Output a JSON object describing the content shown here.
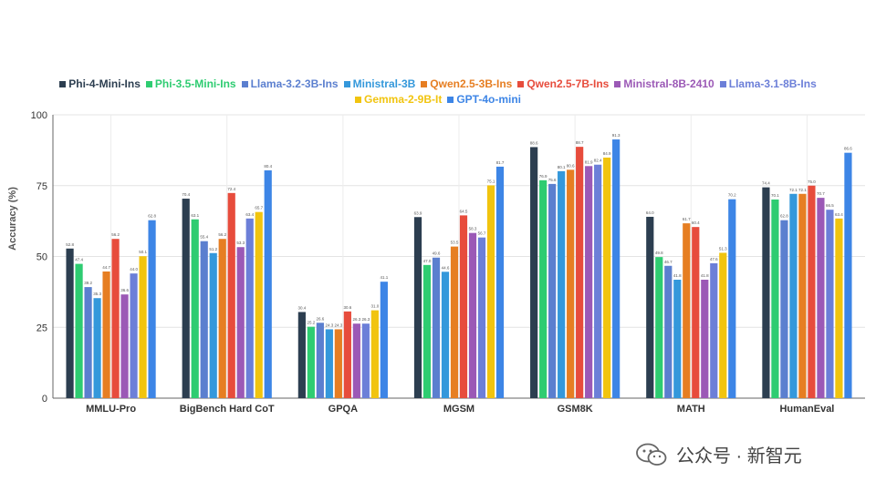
{
  "chart_data": {
    "type": "bar",
    "title": "",
    "xlabel": "",
    "ylabel": "Accuracy (%)",
    "ylim": [
      0,
      100
    ],
    "yticks": [
      0,
      25,
      50,
      75,
      100
    ],
    "grid": true,
    "legend_position": "top",
    "categories": [
      "MMLU-Pro",
      "BigBench Hard CoT",
      "GPQA",
      "MGSM",
      "GSM8K",
      "MATH",
      "HumanEval"
    ],
    "series": [
      {
        "name": "Phi-4-Mini-Ins",
        "color": "#2c3e50",
        "values": [
          52.8,
          70.4,
          30.4,
          63.9,
          88.6,
          64.0,
          74.4
        ]
      },
      {
        "name": "Phi-3.5-Mini-Ins",
        "color": "#2ecc71",
        "values": [
          47.4,
          63.1,
          25.2,
          47.0,
          76.9,
          49.8,
          70.1
        ]
      },
      {
        "name": "Llama-3.2-3B-Ins",
        "color": "#5b7fcf",
        "values": [
          39.2,
          55.4,
          26.6,
          49.6,
          75.6,
          46.7,
          62.8
        ]
      },
      {
        "name": "Ministral-3B",
        "color": "#3498db",
        "values": [
          35.3,
          51.2,
          24.3,
          44.6,
          80.1,
          41.8,
          72.1
        ]
      },
      {
        "name": "Qwen2.5-3B-Ins",
        "color": "#e67e22",
        "values": [
          44.7,
          56.2,
          24.3,
          53.5,
          80.6,
          61.7,
          72.1
        ]
      },
      {
        "name": "Qwen2.5-7B-Ins",
        "color": "#e74c3c",
        "values": [
          56.2,
          72.4,
          30.6,
          64.5,
          88.7,
          60.4,
          75.0
        ]
      },
      {
        "name": "Ministral-8B-2410",
        "color": "#9b59b6",
        "values": [
          36.6,
          53.3,
          26.3,
          58.3,
          81.9,
          41.8,
          70.7
        ]
      },
      {
        "name": "Llama-3.1-8B-Ins",
        "color": "#6c7fd8",
        "values": [
          44.0,
          63.4,
          26.3,
          56.7,
          82.4,
          47.6,
          66.5
        ]
      },
      {
        "name": "Gemma-2-9B-It",
        "color": "#f1c40f",
        "values": [
          50.1,
          65.7,
          31.0,
          75.1,
          84.9,
          51.3,
          63.4
        ]
      },
      {
        "name": "GPT-4o-mini",
        "color": "#3d85e6",
        "values": [
          62.8,
          80.4,
          41.1,
          81.7,
          91.3,
          70.2,
          86.6
        ]
      }
    ]
  },
  "watermark": {
    "icon": "wechat-icon",
    "text": "公众号 · 新智元"
  }
}
